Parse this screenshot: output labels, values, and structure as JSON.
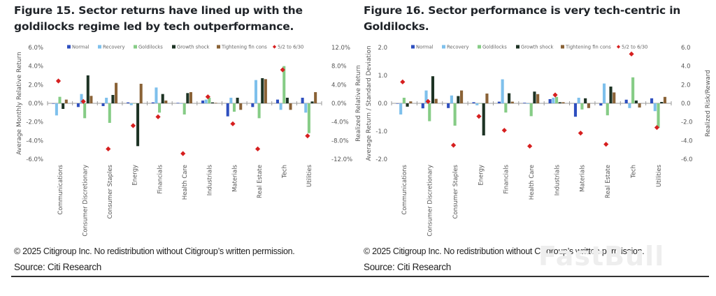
{
  "watermark": "FastBull",
  "colors": {
    "Normal": "#2e4fbf",
    "Recovery": "#7ec0ec",
    "Goldilocks": "#86cc86",
    "Growth shock": "#1d3324",
    "Tightening fin cons": "#8a6236",
    "5/2 to 6/30": "#d61f1f"
  },
  "chart_data": [
    {
      "id": "fig15",
      "type": "bar",
      "title": "Figure 15. Sector returns have lined up with the goldilocks regime led by tech outperformance.",
      "ylabel": "Average Monthly Relative Return",
      "y2label": "Realized Relative Return",
      "ylim": [
        -6,
        6
      ],
      "y2lim": [
        -12,
        12
      ],
      "yticks": [
        "6.0%",
        "4.0%",
        "2.0%",
        "0.0%",
        "-2.0%",
        "-4.0%",
        "-6.0%"
      ],
      "y2ticks": [
        "12.0%",
        "8.0%",
        "4.0%",
        "0.0%",
        "-4.0%",
        "-8.0%",
        "-12.0%"
      ],
      "grid": false,
      "legend": "top",
      "categories": [
        "Communications",
        "Consumer Discretionary",
        "Consumer Staples",
        "Energy",
        "Financials",
        "Health Care",
        "Industrials",
        "Materials",
        "Real Estate",
        "Tech",
        "Utilities"
      ],
      "series": [
        {
          "name": "Normal",
          "axis": "primary",
          "values": [
            0.0,
            -0.4,
            -0.3,
            0.1,
            0.1,
            0.05,
            0.3,
            -1.4,
            -0.4,
            0.4,
            0.6
          ]
        },
        {
          "name": "Recovery",
          "axis": "primary",
          "values": [
            -1.3,
            1.0,
            0.6,
            -0.2,
            1.7,
            -0.05,
            0.4,
            0.6,
            2.5,
            -0.7,
            -1.0
          ]
        },
        {
          "name": "Goldilocks",
          "axis": "primary",
          "values": [
            0.7,
            -1.6,
            -2.1,
            0.0,
            -1.0,
            -1.2,
            0.6,
            -0.9,
            -1.6,
            4.0,
            -3.2
          ]
        },
        {
          "name": "Growth shock",
          "axis": "primary",
          "values": [
            -0.6,
            3.0,
            0.9,
            -4.6,
            1.0,
            1.1,
            0.1,
            0.6,
            2.7,
            0.6,
            0.2
          ]
        },
        {
          "name": "Tightening fin cons",
          "axis": "primary",
          "values": [
            0.4,
            0.8,
            2.2,
            2.1,
            0.3,
            1.2,
            0.05,
            -0.7,
            2.6,
            -0.7,
            1.2
          ]
        },
        {
          "name": "5/2 to 6/30",
          "axis": "secondary",
          "type": "scatter",
          "values": [
            4.8,
            0.4,
            -9.8,
            -4.8,
            -2.9,
            -10.8,
            1.4,
            -4.4,
            -9.8,
            7.2,
            -7.0
          ]
        }
      ]
    },
    {
      "id": "fig16",
      "type": "bar",
      "title": "Figure 16. Sector performance is very tech-centric in Goldilocks.",
      "ylabel": "Average Return / Standard Deviation",
      "y2label": "Realized Risk/Reward",
      "ylim": [
        -2,
        2
      ],
      "y2lim": [
        -6,
        6
      ],
      "yticks": [
        "2.0",
        "1.0",
        "0.0",
        "-1.0",
        "-2.0"
      ],
      "y2ticks": [
        "6.0",
        "4.0",
        "2.0",
        "0.0",
        "-2.0",
        "-4.0",
        "-6.0"
      ],
      "grid": false,
      "legend": "top",
      "categories": [
        "Communications",
        "Consumer Discretionary",
        "Consumer Staples",
        "Energy",
        "Financials",
        "Health Care",
        "Industrials",
        "Materials",
        "Real Estate",
        "Tech",
        "Utilities"
      ],
      "series": [
        {
          "name": "Normal",
          "axis": "primary",
          "values": [
            0.0,
            -0.18,
            -0.17,
            0.04,
            0.06,
            0.02,
            0.15,
            -0.48,
            -0.08,
            0.13,
            0.18
          ]
        },
        {
          "name": "Recovery",
          "axis": "primary",
          "values": [
            -0.4,
            0.46,
            0.28,
            -0.07,
            0.86,
            -0.02,
            0.2,
            0.2,
            0.71,
            -0.17,
            -0.28
          ]
        },
        {
          "name": "Goldilocks",
          "axis": "primary",
          "values": [
            0.2,
            -0.64,
            -0.8,
            0.0,
            -0.33,
            -0.46,
            0.23,
            -0.22,
            -0.43,
            0.93,
            -0.88
          ]
        },
        {
          "name": "Growth shock",
          "axis": "primary",
          "values": [
            -0.12,
            0.97,
            0.26,
            -1.15,
            0.36,
            0.42,
            0.04,
            0.18,
            0.6,
            0.1,
            0.05
          ]
        },
        {
          "name": "Tightening fin cons",
          "axis": "primary",
          "values": [
            0.07,
            0.16,
            0.46,
            0.35,
            0.06,
            0.33,
            0.04,
            -0.17,
            0.39,
            -0.15,
            0.23
          ]
        },
        {
          "name": "5/2 to 6/30",
          "axis": "secondary",
          "type": "scatter",
          "values": [
            2.3,
            0.2,
            -4.5,
            -1.4,
            -2.9,
            -4.6,
            0.9,
            -3.2,
            -4.4,
            5.3,
            -2.6
          ]
        }
      ]
    }
  ],
  "footer": {
    "copyright": "© 2025 Citigroup Inc. No redistribution without Citigroup’s written permission.",
    "source": "Source: Citi Research"
  }
}
